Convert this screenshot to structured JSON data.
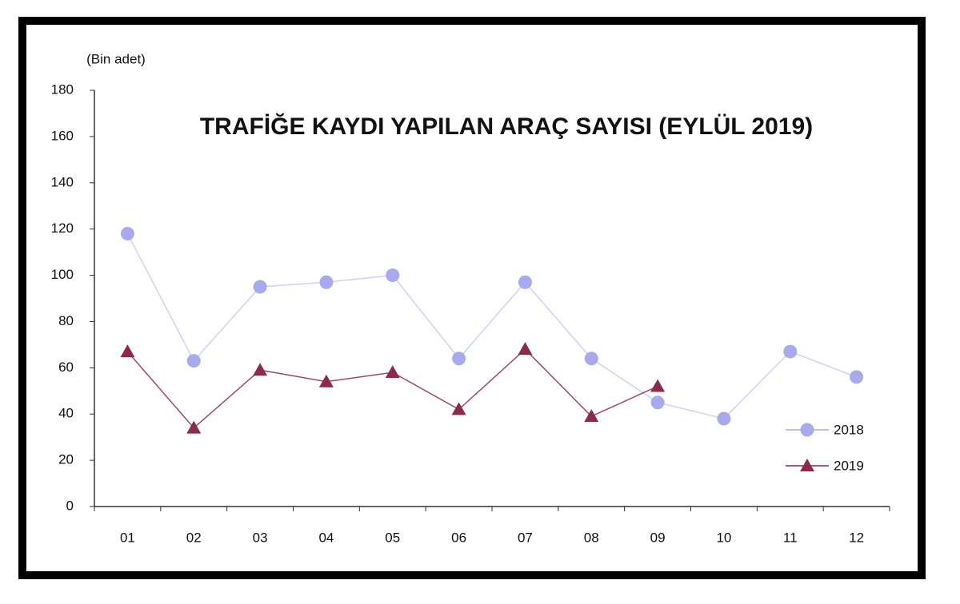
{
  "chart_data": {
    "type": "line",
    "title": "TRAFİĞE KAYDI YAPILAN ARAÇ SAYISI (EYLÜL 2019)",
    "y_label": "(Bin adet)",
    "categories": [
      "01",
      "02",
      "03",
      "04",
      "05",
      "06",
      "07",
      "08",
      "09",
      "10",
      "11",
      "12"
    ],
    "series": [
      {
        "name": "2018",
        "color": "#a9a9ee",
        "marker": "circle",
        "values": [
          118,
          63,
          95,
          97,
          100,
          64,
          97,
          64,
          45,
          38,
          67,
          56
        ]
      },
      {
        "name": "2019",
        "color": "#8b2a4a",
        "marker": "triangle",
        "values": [
          67,
          34,
          59,
          54,
          58,
          42,
          68,
          39,
          52,
          null,
          null,
          null
        ]
      }
    ],
    "ylim": [
      0,
      180
    ],
    "yticks": [
      0,
      20,
      40,
      60,
      80,
      100,
      120,
      140,
      160,
      180
    ],
    "grid": false,
    "legend": "right"
  }
}
